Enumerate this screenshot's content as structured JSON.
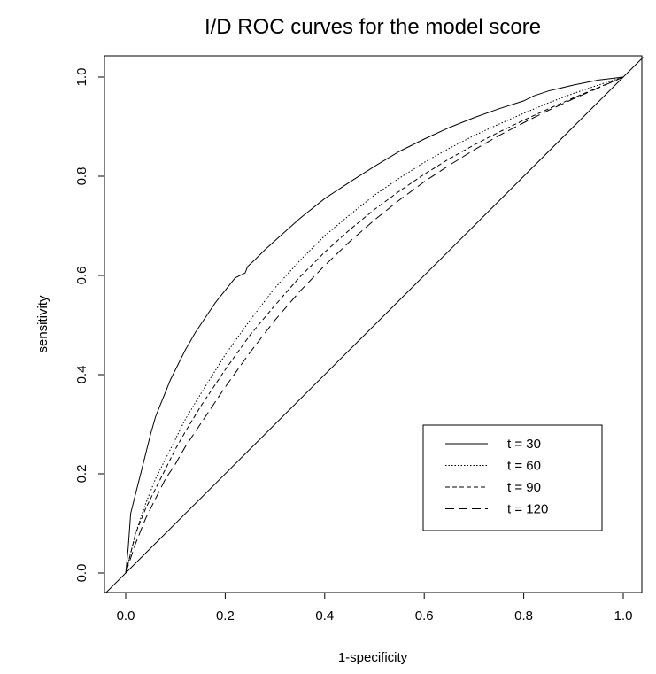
{
  "chart_data": {
    "type": "line",
    "title": "I/D ROC curves for the model score",
    "xlabel": "1-specificity",
    "ylabel": "sensitivity",
    "xlim": [
      -0.04,
      1.04
    ],
    "ylim": [
      -0.04,
      1.04
    ],
    "xticks": [
      0.0,
      0.2,
      0.4,
      0.6,
      0.8,
      1.0
    ],
    "xtick_labels": [
      "0.0",
      "0.2",
      "0.4",
      "0.6",
      "0.8",
      "1.0"
    ],
    "yticks": [
      0.0,
      0.2,
      0.4,
      0.6,
      0.8,
      1.0
    ],
    "ytick_labels": [
      "0.0",
      "0.2",
      "0.4",
      "0.6",
      "0.8",
      "1.0"
    ],
    "grid": false,
    "legend_position": "bottom-right",
    "reference_line": {
      "x": [
        0,
        1
      ],
      "y": [
        0,
        1
      ]
    },
    "series": [
      {
        "name": "t = 30",
        "line_style": "solid",
        "x": [
          0.0,
          0.005,
          0.01,
          0.02,
          0.03,
          0.04,
          0.05,
          0.06,
          0.07,
          0.08,
          0.09,
          0.1,
          0.12,
          0.14,
          0.16,
          0.18,
          0.2,
          0.22,
          0.24,
          0.245,
          0.26,
          0.28,
          0.3,
          0.35,
          0.4,
          0.45,
          0.5,
          0.55,
          0.6,
          0.65,
          0.7,
          0.75,
          0.8,
          0.82,
          0.85,
          0.9,
          0.95,
          1.0
        ],
        "y": [
          0.0,
          0.05,
          0.12,
          0.16,
          0.2,
          0.24,
          0.28,
          0.315,
          0.34,
          0.365,
          0.39,
          0.41,
          0.45,
          0.485,
          0.515,
          0.545,
          0.57,
          0.595,
          0.605,
          0.618,
          0.632,
          0.652,
          0.67,
          0.715,
          0.755,
          0.788,
          0.82,
          0.85,
          0.875,
          0.898,
          0.918,
          0.936,
          0.952,
          0.962,
          0.972,
          0.984,
          0.994,
          1.0
        ]
      },
      {
        "name": "t = 60",
        "line_style": "dotted",
        "x": [
          0.0,
          0.02,
          0.04,
          0.06,
          0.08,
          0.1,
          0.12,
          0.15,
          0.2,
          0.25,
          0.3,
          0.35,
          0.4,
          0.45,
          0.5,
          0.55,
          0.6,
          0.65,
          0.7,
          0.75,
          0.8,
          0.85,
          0.9,
          0.95,
          1.0
        ],
        "y": [
          0.0,
          0.08,
          0.14,
          0.19,
          0.23,
          0.27,
          0.31,
          0.36,
          0.44,
          0.51,
          0.575,
          0.63,
          0.68,
          0.722,
          0.762,
          0.796,
          0.828,
          0.856,
          0.882,
          0.905,
          0.927,
          0.948,
          0.967,
          0.984,
          1.0
        ]
      },
      {
        "name": "t = 90",
        "line_style": "dashed",
        "x": [
          0.0,
          0.02,
          0.04,
          0.06,
          0.08,
          0.1,
          0.12,
          0.15,
          0.2,
          0.25,
          0.3,
          0.35,
          0.4,
          0.45,
          0.5,
          0.55,
          0.6,
          0.65,
          0.7,
          0.75,
          0.8,
          0.85,
          0.9,
          0.95,
          1.0
        ],
        "y": [
          0.0,
          0.08,
          0.13,
          0.17,
          0.21,
          0.25,
          0.285,
          0.335,
          0.41,
          0.48,
          0.54,
          0.597,
          0.647,
          0.692,
          0.733,
          0.77,
          0.804,
          0.835,
          0.863,
          0.889,
          0.913,
          0.936,
          0.958,
          0.979,
          1.0
        ]
      },
      {
        "name": "t = 120",
        "line_style": "longdash",
        "x": [
          0.0,
          0.02,
          0.04,
          0.06,
          0.08,
          0.1,
          0.12,
          0.15,
          0.2,
          0.25,
          0.3,
          0.35,
          0.4,
          0.45,
          0.5,
          0.55,
          0.6,
          0.65,
          0.7,
          0.75,
          0.8,
          0.85,
          0.9,
          0.95,
          1.0
        ],
        "y": [
          0.0,
          0.06,
          0.11,
          0.15,
          0.19,
          0.22,
          0.255,
          0.3,
          0.375,
          0.445,
          0.51,
          0.568,
          0.62,
          0.668,
          0.712,
          0.752,
          0.789,
          0.822,
          0.853,
          0.882,
          0.908,
          0.933,
          0.956,
          0.978,
          1.0
        ]
      }
    ]
  }
}
